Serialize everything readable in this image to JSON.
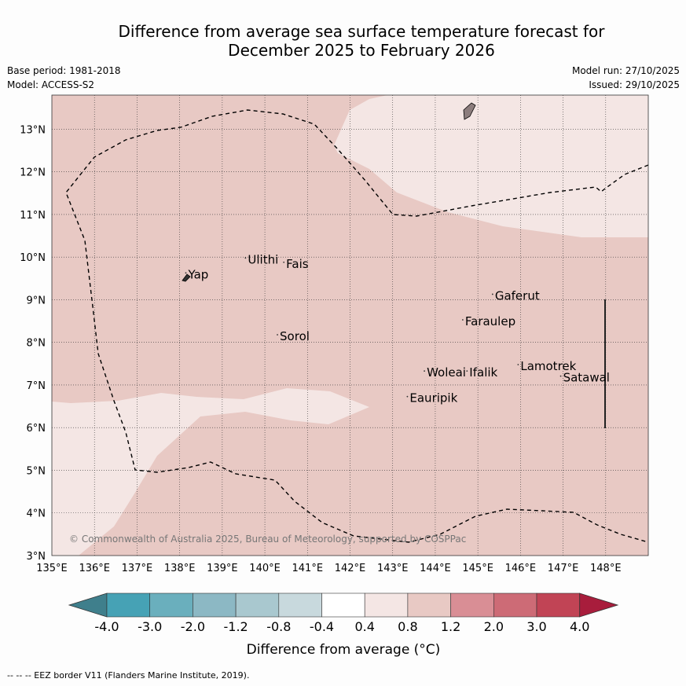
{
  "title": {
    "line1": "Difference from average sea surface temperature forecast for",
    "line2": "December 2025 to February 2026"
  },
  "meta": {
    "base_period": "Base period: 1981-2018",
    "model": "Model: ACCESS-S2",
    "model_run": "Model run: 27/10/2025",
    "issued": "Issued: 29/10/2025"
  },
  "map": {
    "lon_range": [
      135,
      149
    ],
    "lat_range": [
      3,
      13.8
    ],
    "lon_ticks": [
      "135°E",
      "136°E",
      "137°E",
      "138°E",
      "139°E",
      "140°E",
      "141°E",
      "142°E",
      "143°E",
      "144°E",
      "145°E",
      "146°E",
      "147°E",
      "148°E"
    ],
    "lat_ticks": [
      "3°N",
      "4°N",
      "5°N",
      "6°N",
      "7°N",
      "8°N",
      "9°N",
      "10°N",
      "11°N",
      "12°N",
      "13°N"
    ],
    "places": [
      {
        "name": "Yap",
        "lon": 138.2,
        "lat": 9.5
      },
      {
        "name": "Ulithi",
        "lon": 139.6,
        "lat": 9.85
      },
      {
        "name": "Fais",
        "lon": 140.5,
        "lat": 9.75
      },
      {
        "name": "Gaferut",
        "lon": 145.4,
        "lat": 9.0
      },
      {
        "name": "Faraulep",
        "lon": 144.7,
        "lat": 8.4
      },
      {
        "name": "Sorol",
        "lon": 140.35,
        "lat": 8.05
      },
      {
        "name": "Woleai",
        "lon": 143.8,
        "lat": 7.2
      },
      {
        "name": "Ifalik",
        "lon": 144.8,
        "lat": 7.2
      },
      {
        "name": "Lamotrek",
        "lon": 146.0,
        "lat": 7.35
      },
      {
        "name": "Satawal",
        "lon": 147.0,
        "lat": 7.08
      },
      {
        "name": "Eauripik",
        "lon": 143.4,
        "lat": 6.6
      }
    ],
    "copyright": "© Commonwealth of Australia 2025, Bureau of Meteorology, supported by COSPPac"
  },
  "legend": {
    "labels": [
      "-4.0",
      "-3.0",
      "-2.0",
      "-1.2",
      "-0.8",
      "-0.4",
      "0.4",
      "0.8",
      "1.2",
      "2.0",
      "3.0",
      "4.0"
    ],
    "colors": [
      "#3f7f8c",
      "#46a2b5",
      "#6aafbd",
      "#8cb8c4",
      "#a9c8cf",
      "#c8d9dd",
      "#ffffff",
      "#f4e6e4",
      "#e8c9c4",
      "#d98e95",
      "#cd6b76",
      "#c14455",
      "#a81d3c"
    ],
    "label": "Difference from average (°C)"
  },
  "footnote": "-- -- -- EEZ border V11 (Flanders Marine Institute, 2019)."
}
